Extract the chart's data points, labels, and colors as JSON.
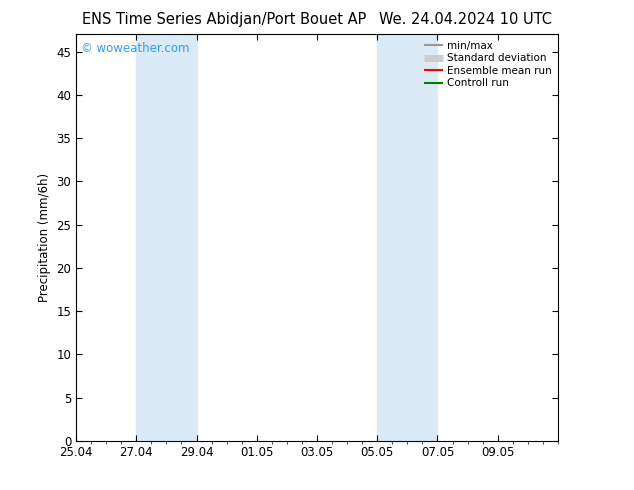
{
  "title_left": "ENS Time Series Abidjan/Port Bouet AP",
  "title_right": "We. 24.04.2024 10 UTC",
  "ylabel": "Precipitation (mm/6h)",
  "ylim": [
    0,
    47
  ],
  "yticks": [
    0,
    5,
    10,
    15,
    20,
    25,
    30,
    35,
    40,
    45
  ],
  "xlim": [
    0,
    16
  ],
  "xtick_labels": [
    "25.04",
    "27.04",
    "29.04",
    "01.05",
    "03.05",
    "05.05",
    "07.05",
    "09.05"
  ],
  "xtick_positions": [
    0,
    2,
    4,
    6,
    8,
    10,
    12,
    14
  ],
  "shaded_bands": [
    {
      "x_start": 2,
      "x_end": 4,
      "color": "#daeaf7"
    },
    {
      "x_start": 10,
      "x_end": 12,
      "color": "#daeaf7"
    }
  ],
  "watermark_text": "© woweather.com",
  "watermark_color": "#3399ff",
  "legend_entries": [
    {
      "label": "min/max",
      "color": "#999999",
      "lw": 1.5
    },
    {
      "label": "Standard deviation",
      "color": "#cccccc",
      "lw": 5
    },
    {
      "label": "Ensemble mean run",
      "color": "#ff0000",
      "lw": 1.5
    },
    {
      "label": "Controll run",
      "color": "#008000",
      "lw": 1.5
    }
  ],
  "bg_color": "#ffffff",
  "plot_bg_color": "#ffffff",
  "title_fontsize": 10.5,
  "tick_fontsize": 8.5,
  "ylabel_fontsize": 8.5,
  "legend_fontsize": 7.5
}
